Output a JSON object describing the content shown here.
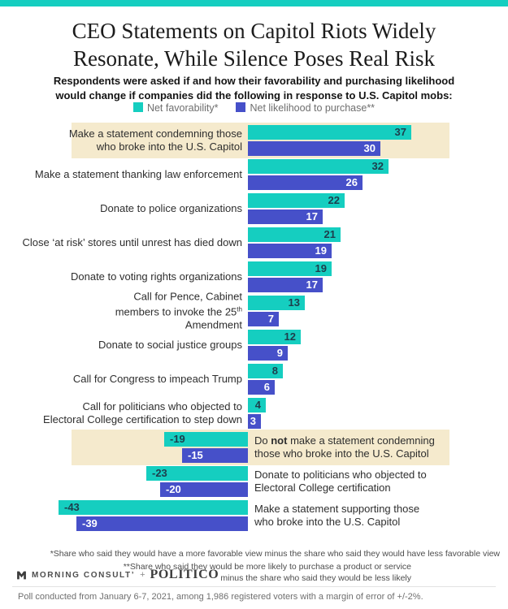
{
  "page": {
    "title_line1": "CEO Statements on Capitol Riots Widely",
    "title_line2": "Resonate, While Silence Poses Real Risk",
    "subtitle_line1": "Respondents were asked if and how their favorability and purchasing likelihood",
    "subtitle_line2": "would change if companies did the following in response to U.S. Capitol mobs:"
  },
  "colors": {
    "accent_teal": "#15CEC0",
    "accent_blue": "#4650C9",
    "highlight_beige": "#F5EACD",
    "teal_value_text": "#1D3E4C"
  },
  "chart_data": {
    "type": "bar",
    "orientation": "horizontal",
    "title": "CEO Statements on Capitol Riots Widely Resonate, While Silence Poses Real Risk",
    "xlim": [
      -43,
      37
    ],
    "grid": false,
    "legend_position": "top",
    "series": [
      {
        "name": "Net favorability*",
        "color": "#15CEC0",
        "value_label_color": "#1D3E4C"
      },
      {
        "name": "Net likelihood to purchase**",
        "color": "#4650C9",
        "value_label_color": "#FFFFFF"
      }
    ],
    "rows": [
      {
        "label_lines": [
          "Make a statement condemning those",
          "who broke into the U.S. Capitol"
        ],
        "values": [
          37,
          30
        ],
        "highlight": true
      },
      {
        "label_lines": [
          "Make a statement thanking law enforcement"
        ],
        "values": [
          32,
          26
        ],
        "highlight": false
      },
      {
        "label_lines": [
          "Donate to police organizations"
        ],
        "values": [
          22,
          17
        ],
        "highlight": false
      },
      {
        "label_lines": [
          "Close ‘at risk’ stores until unrest has died down"
        ],
        "values": [
          21,
          19
        ],
        "highlight": false
      },
      {
        "label_lines": [
          "Donate to voting rights organizations"
        ],
        "values": [
          19,
          17
        ],
        "highlight": false
      },
      {
        "label_lines": [
          "Call for Pence, Cabinet",
          [
            {
              "text": "members to invoke the 25"
            },
            {
              "text": "th",
              "sup": true
            }
          ],
          "Amendment"
        ],
        "values": [
          13,
          7
        ],
        "highlight": false
      },
      {
        "label_lines": [
          "Donate to social justice groups"
        ],
        "values": [
          12,
          9
        ],
        "highlight": false
      },
      {
        "label_lines": [
          "Call for Congress to impeach Trump"
        ],
        "values": [
          8,
          6
        ],
        "highlight": false
      },
      {
        "label_lines": [
          "Call for politicians who objected to",
          "Electoral College certification to step down"
        ],
        "values": [
          4,
          3
        ],
        "highlight": false
      },
      {
        "label_lines": [
          [
            {
              "text": "Do "
            },
            {
              "text": "not",
              "bold": true
            },
            {
              "text": " make a statement condemning"
            }
          ],
          "those who broke into the U.S. Capitol"
        ],
        "values": [
          -19,
          -15
        ],
        "highlight": true
      },
      {
        "label_lines": [
          "Donate to politicians who objected to",
          "Electoral College certification"
        ],
        "values": [
          -23,
          -20
        ],
        "highlight": false
      },
      {
        "label_lines": [
          "Make a statement supporting those",
          "who broke into the U.S. Capitol"
        ],
        "values": [
          -43,
          -39
        ],
        "highlight": false
      }
    ]
  },
  "footer": {
    "footnote1": "*Share who said they would have a more favorable view minus the share who said they would have less favorable view",
    "footnote2_line1": "**Share who said they would be more likely to purchase a product or service",
    "footnote2_line2": "minus the share who said they would be less likely",
    "logo_morning_consult": "MORNING CONSULT’",
    "logo_plus": "+",
    "logo_politico": "POLITICO",
    "poll_note": "Poll conducted from January 6-7, 2021, among 1,986 registered voters with a margin of error of +/-2%."
  }
}
